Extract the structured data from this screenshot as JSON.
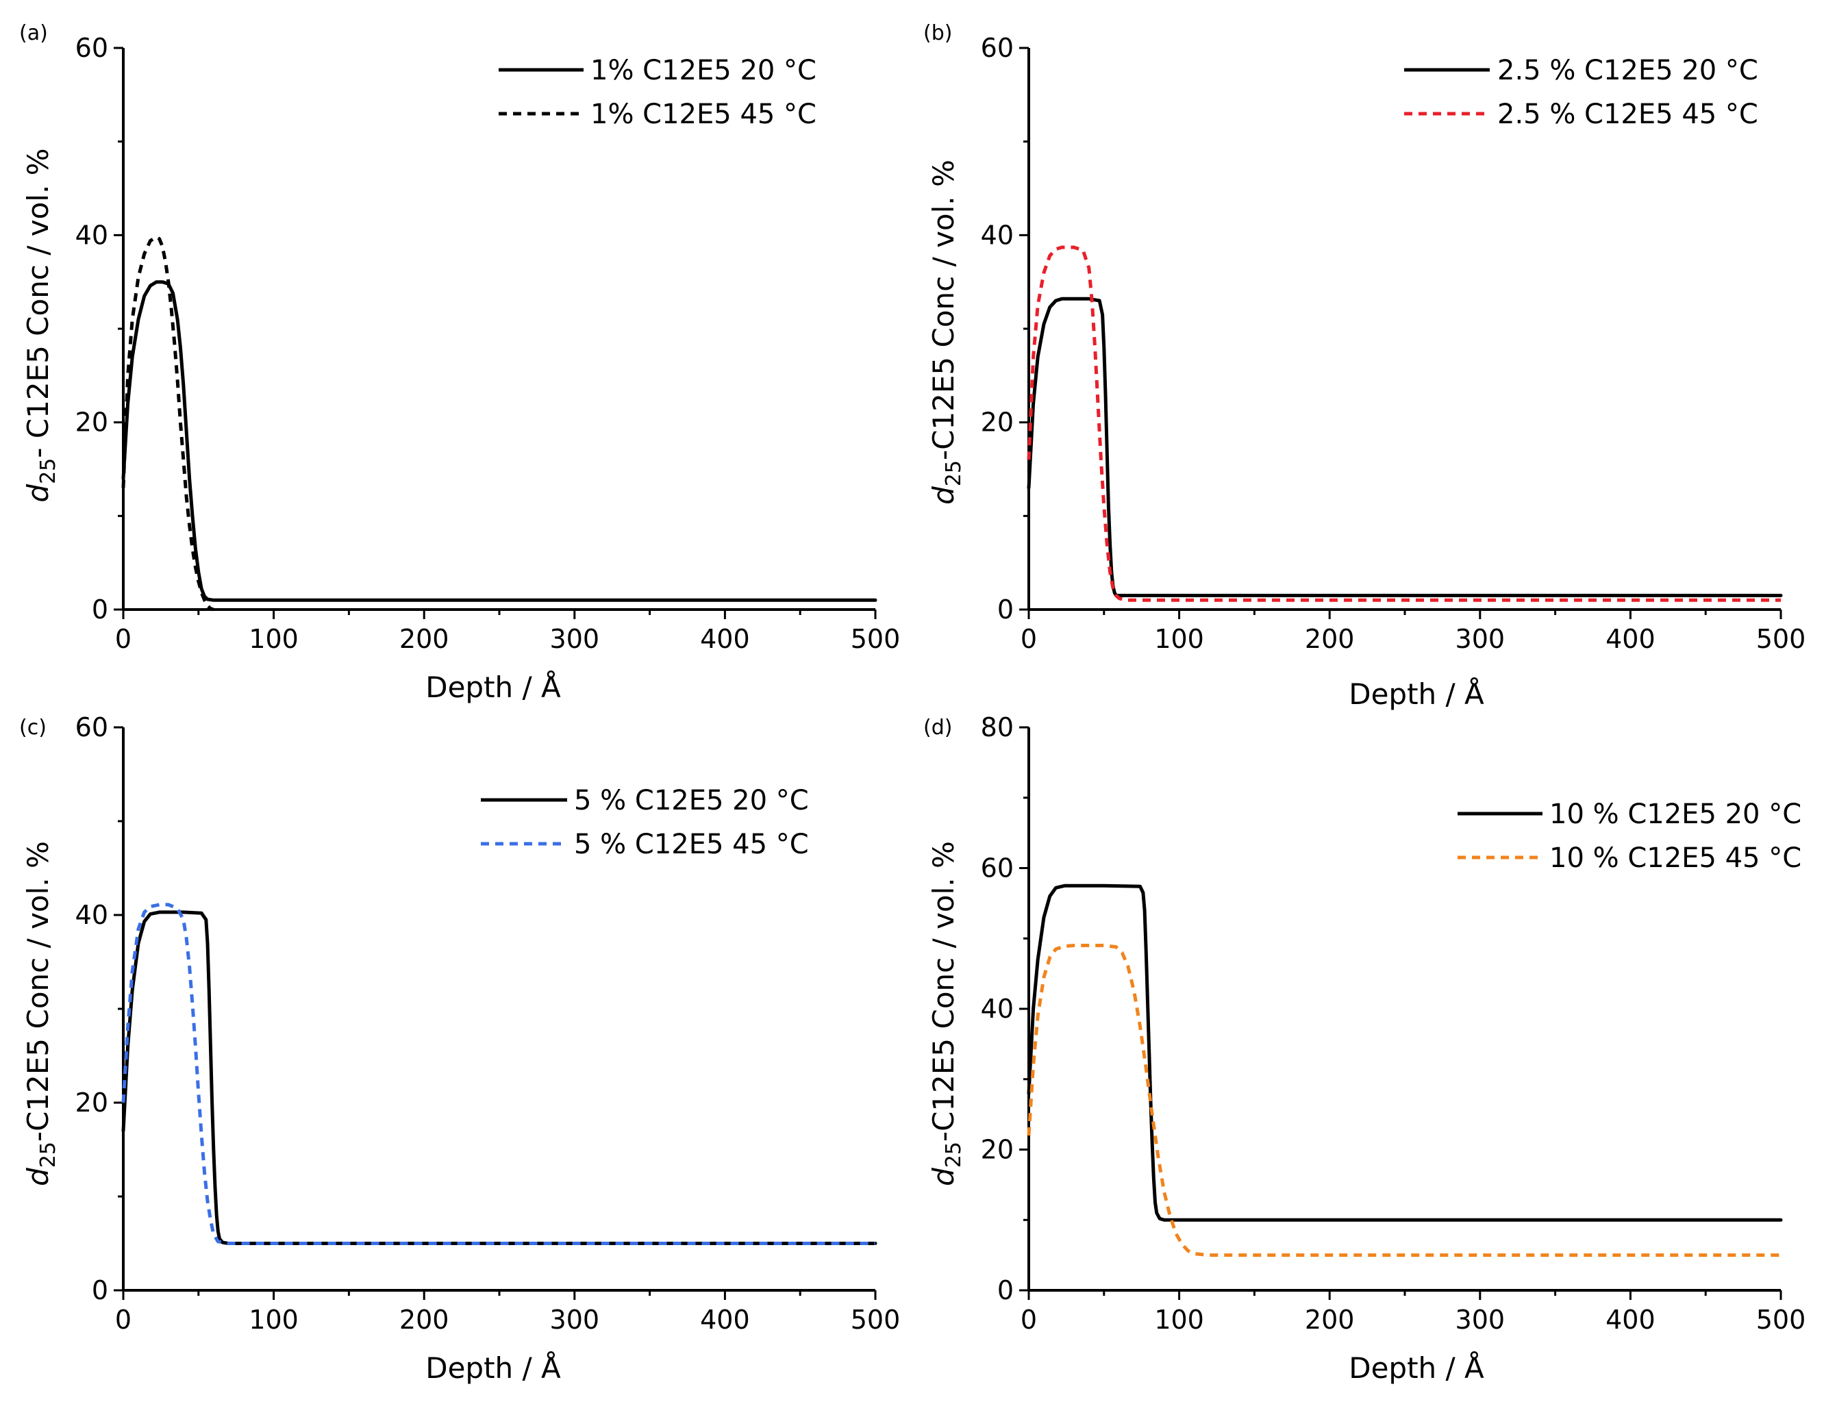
{
  "chart_data": [
    {
      "panel_label": "(a)",
      "type": "line",
      "xlabel": "Depth / Å",
      "ylabel_prefix": "d",
      "ylabel_sub": "25",
      "ylabel_rest": "- C12E5 Conc / vol. %",
      "xlim": [
        0,
        500
      ],
      "ylim": [
        0,
        60
      ],
      "xticks": [
        0,
        100,
        200,
        300,
        400,
        500
      ],
      "yticks": [
        0,
        20,
        40,
        60
      ],
      "grid": false,
      "legend_position": "top-right",
      "series": [
        {
          "name": "1% C12E5 20 °C",
          "style": "solid",
          "color": "#000000",
          "x": [
            0,
            3,
            6,
            10,
            14,
            18,
            22,
            26,
            30,
            33,
            36,
            38,
            40,
            42,
            44,
            46,
            48,
            50,
            52,
            54,
            56,
            60,
            80,
            150,
            300,
            500
          ],
          "y": [
            14,
            22,
            27,
            31,
            33.5,
            34.6,
            35,
            35,
            34.8,
            33.8,
            31,
            28,
            24,
            19,
            14,
            10,
            6.5,
            4,
            2.2,
            1.4,
            1.1,
            1,
            1,
            1,
            1,
            1
          ]
        },
        {
          "name": "1% C12E5 45 °C",
          "style": "dashed",
          "color": "#000000",
          "x": [
            0,
            3,
            6,
            10,
            14,
            18,
            22,
            24,
            26,
            28,
            30,
            32,
            34,
            36,
            38,
            40,
            42,
            44,
            46,
            48,
            50,
            52,
            54,
            56,
            58,
            60
          ],
          "y": [
            13,
            25,
            31,
            35.5,
            38,
            39.4,
            39.8,
            39.6,
            38.8,
            37.2,
            35,
            32,
            28.5,
            24.5,
            20,
            16,
            12,
            9,
            6.5,
            4.5,
            3,
            1.8,
            1,
            0.4,
            0.1,
            0
          ]
        }
      ]
    },
    {
      "panel_label": "(b)",
      "type": "line",
      "xlabel": "Depth / Å",
      "ylabel_prefix": "d",
      "ylabel_sub": "25",
      "ylabel_rest": "-C12E5 Conc / vol. %",
      "xlim": [
        0,
        500
      ],
      "ylim": [
        0,
        60
      ],
      "xticks": [
        0,
        100,
        200,
        300,
        400,
        500
      ],
      "yticks": [
        0,
        20,
        40,
        60
      ],
      "grid": false,
      "legend_position": "top-right",
      "series": [
        {
          "name": "2.5 % C12E5 20 °C",
          "style": "solid",
          "color": "#000000",
          "x": [
            0,
            3,
            6,
            10,
            14,
            18,
            22,
            30,
            40,
            47,
            49,
            50,
            51,
            52,
            53,
            54,
            55,
            56,
            57,
            58,
            60,
            65,
            100,
            500
          ],
          "y": [
            13,
            22,
            27,
            30.5,
            32.3,
            33,
            33.2,
            33.2,
            33.2,
            33,
            31.5,
            28,
            23,
            17,
            11,
            7,
            4,
            2.5,
            1.8,
            1.5,
            1.5,
            1.5,
            1.5,
            1.5
          ]
        },
        {
          "name": "2.5 % C12E5 45 °C",
          "style": "dashed",
          "color": "#e8202a",
          "x": [
            0,
            3,
            6,
            10,
            14,
            18,
            22,
            30,
            36,
            40,
            42,
            44,
            46,
            48,
            50,
            52,
            54,
            56,
            58,
            60,
            64,
            80,
            500
          ],
          "y": [
            16,
            27,
            32.5,
            36,
            37.8,
            38.5,
            38.7,
            38.7,
            38.4,
            36.5,
            33,
            28,
            22,
            16,
            11,
            7,
            4,
            2.3,
            1.5,
            1.2,
            1,
            1,
            1
          ]
        }
      ]
    },
    {
      "panel_label": "(c)",
      "type": "line",
      "xlabel": "Depth / Å",
      "ylabel_prefix": "d",
      "ylabel_sub": "25",
      "ylabel_rest": "-C12E5 Conc / vol. %",
      "xlim": [
        0,
        500
      ],
      "ylim": [
        0,
        60
      ],
      "xticks": [
        0,
        100,
        200,
        300,
        400,
        500
      ],
      "yticks": [
        0,
        20,
        40,
        60
      ],
      "grid": false,
      "legend_position": "top-right",
      "series": [
        {
          "name": "5 % C12E5 20 °C",
          "style": "solid",
          "color": "#000000",
          "x": [
            0,
            3,
            6,
            10,
            14,
            18,
            24,
            30,
            40,
            52,
            55,
            56,
            57,
            58,
            59,
            60,
            61,
            62,
            63,
            64,
            66,
            70,
            100,
            500
          ],
          "y": [
            17,
            26,
            32,
            37,
            39.3,
            40.1,
            40.3,
            40.3,
            40.3,
            40.2,
            39.5,
            37,
            32,
            26,
            20,
            15,
            11,
            8,
            6.3,
            5.5,
            5.1,
            5,
            5,
            5
          ]
        },
        {
          "name": "5 % C12E5 45 °C",
          "style": "dashed",
          "color": "#3b6fe6",
          "x": [
            0,
            3,
            6,
            10,
            14,
            18,
            24,
            30,
            36,
            40,
            42,
            44,
            46,
            48,
            50,
            52,
            54,
            56,
            58,
            60,
            63,
            70,
            100,
            500
          ],
          "y": [
            20,
            28,
            34,
            38.5,
            40.3,
            40.9,
            41.1,
            41.1,
            40.7,
            39.5,
            37.5,
            34.5,
            30.5,
            26,
            21,
            16.5,
            12.5,
            9.5,
            7.5,
            6,
            5.2,
            5,
            5,
            5
          ]
        }
      ]
    },
    {
      "panel_label": "(d)",
      "type": "line",
      "xlabel": "Depth / Å",
      "ylabel_prefix": "d",
      "ylabel_sub": "25",
      "ylabel_rest": "-C12E5 Conc / vol. %",
      "xlim": [
        0,
        500
      ],
      "ylim": [
        0,
        80
      ],
      "xticks": [
        0,
        100,
        200,
        300,
        400,
        500
      ],
      "yticks": [
        0,
        20,
        40,
        60,
        80
      ],
      "grid": false,
      "legend_position": "top-right",
      "series": [
        {
          "name": "10 % C12E5 20 °C",
          "style": "solid",
          "color": "#000000",
          "x": [
            0,
            3,
            6,
            10,
            14,
            18,
            24,
            30,
            50,
            74,
            76,
            77,
            78,
            79,
            80,
            81,
            82,
            83,
            84,
            85,
            87,
            90,
            100,
            500
          ],
          "y": [
            28,
            40,
            47,
            53,
            56,
            57.2,
            57.5,
            57.5,
            57.5,
            57.4,
            56.5,
            54,
            48,
            41,
            34,
            27,
            21,
            16,
            12.5,
            11,
            10.2,
            10,
            10,
            10
          ]
        },
        {
          "name": "10 % C12E5 45 °C",
          "style": "dashed",
          "color": "#f0841e",
          "x": [
            0,
            3,
            6,
            10,
            14,
            18,
            24,
            30,
            50,
            58,
            62,
            66,
            70,
            74,
            78,
            82,
            86,
            90,
            94,
            98,
            102,
            106,
            110,
            120,
            200,
            500
          ],
          "y": [
            22,
            32,
            39,
            44.5,
            47.3,
            48.5,
            48.9,
            49,
            49,
            48.8,
            48,
            46,
            42.5,
            37.5,
            31.5,
            25,
            19,
            14,
            10.5,
            8,
            6.5,
            5.6,
            5.2,
            5,
            5,
            5
          ]
        }
      ]
    }
  ]
}
